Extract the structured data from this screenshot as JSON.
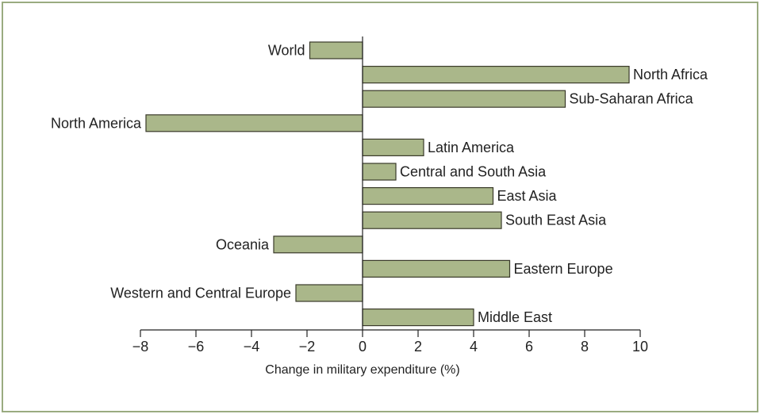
{
  "chart_data": {
    "type": "bar",
    "orientation": "horizontal",
    "categories": [
      "World",
      "North Africa",
      "Sub-Saharan Africa",
      "North America",
      "Latin America",
      "Central and South Asia",
      "East Asia",
      "South East Asia",
      "Oceania",
      "Eastern Europe",
      "Western and Central Europe",
      "Middle East"
    ],
    "values": [
      -1.9,
      9.6,
      7.3,
      -7.8,
      2.2,
      1.2,
      4.7,
      5.0,
      -3.2,
      5.3,
      -2.4,
      4.0
    ],
    "xlabel": "Change in military expenditure (%)",
    "ylabel": "",
    "xlim": [
      -8,
      10
    ],
    "xticks": [
      -8,
      -6,
      -4,
      -2,
      0,
      2,
      4,
      6,
      8,
      10
    ],
    "xtick_labels": [
      "−8",
      "−6",
      "−4",
      "−2",
      "0",
      "2",
      "4",
      "6",
      "8",
      "10"
    ],
    "grid": false,
    "bar_color": "#aab78a",
    "bar_edge_color": "#3a3a2a",
    "frame_color": "#9aab80"
  }
}
